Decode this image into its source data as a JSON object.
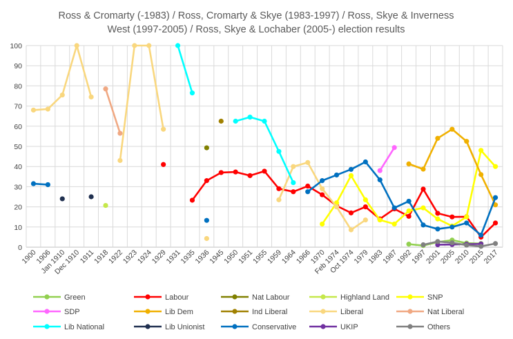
{
  "chart_data": {
    "type": "line",
    "title_lines": [
      "Ross & Cromarty (-1983) / Ross, Cromarty & Skye (1983-1997) / Ross, Skye & Inverness",
      "West (1997-2005) / Ross, Skye & Lochaber (2005-) election results"
    ],
    "categories": [
      "1900",
      "1906",
      "Jan 1910",
      "Dec 1910",
      "1911",
      "1918",
      "1922",
      "1923",
      "1924",
      "1929",
      "1931",
      "1935",
      "1936",
      "1945",
      "1950",
      "1951",
      "1955",
      "1959",
      "1964",
      "1966",
      "1970",
      "Feb 1974",
      "Oct 1974",
      "1979",
      "1983",
      "1987",
      "1992",
      "1997",
      "2001",
      "2005",
      "2010",
      "2015",
      "2017"
    ],
    "ylim": [
      0,
      100
    ],
    "yticks": [
      0,
      10,
      20,
      30,
      40,
      50,
      60,
      70,
      80,
      90,
      100
    ],
    "grid": true,
    "legend_placement": "bottom",
    "series": [
      {
        "name": "Green",
        "color": "#92d050",
        "values": [
          null,
          null,
          null,
          null,
          null,
          null,
          null,
          null,
          null,
          null,
          null,
          null,
          null,
          null,
          null,
          null,
          null,
          null,
          null,
          null,
          null,
          null,
          null,
          null,
          null,
          null,
          1.5,
          0.8,
          2.5,
          3.5,
          2.0,
          1.8,
          null
        ]
      },
      {
        "name": "Labour",
        "color": "#ff0000",
        "values": [
          null,
          null,
          null,
          null,
          null,
          null,
          null,
          null,
          null,
          41,
          null,
          23.3,
          33,
          37,
          37.3,
          35.5,
          37.7,
          29,
          27.5,
          30.3,
          26,
          20.5,
          17,
          20,
          14,
          19,
          15.3,
          28.8,
          16.8,
          15,
          15.1,
          5,
          12
        ]
      },
      {
        "name": "Nat Labour",
        "color": "#808000",
        "values": [
          null,
          null,
          null,
          null,
          null,
          null,
          null,
          null,
          null,
          null,
          null,
          null,
          49.3,
          null,
          null,
          null,
          null,
          null,
          null,
          null,
          null,
          null,
          null,
          null,
          null,
          null,
          null,
          null,
          null,
          null,
          null,
          null,
          null
        ]
      },
      {
        "name": "Highland Land",
        "color": "#c5e84a",
        "values": [
          null,
          null,
          null,
          null,
          null,
          20.7,
          null,
          null,
          null,
          null,
          null,
          null,
          null,
          null,
          null,
          null,
          null,
          null,
          null,
          null,
          null,
          null,
          null,
          null,
          null,
          null,
          null,
          null,
          null,
          null,
          null,
          null,
          null
        ]
      },
      {
        "name": "SNP",
        "color": "#ffff00",
        "values": [
          null,
          null,
          null,
          null,
          null,
          null,
          null,
          null,
          null,
          null,
          null,
          null,
          null,
          null,
          null,
          null,
          null,
          null,
          null,
          null,
          11.5,
          22,
          35.5,
          23.5,
          13.5,
          11.5,
          18,
          19.5,
          14,
          10.5,
          15,
          48,
          40
        ]
      },
      {
        "name": "SDP",
        "color": "#ff66ff",
        "values": [
          null,
          null,
          null,
          null,
          null,
          null,
          null,
          null,
          null,
          null,
          null,
          null,
          null,
          null,
          null,
          null,
          null,
          null,
          null,
          null,
          null,
          null,
          null,
          null,
          38,
          49.4,
          null,
          null,
          null,
          null,
          null,
          null,
          null
        ]
      },
      {
        "name": "Lib Dem",
        "color": "#f0b000",
        "values": [
          null,
          null,
          null,
          null,
          null,
          null,
          null,
          null,
          null,
          null,
          null,
          null,
          null,
          null,
          null,
          null,
          null,
          null,
          null,
          null,
          null,
          null,
          null,
          null,
          null,
          null,
          41.3,
          38.7,
          54,
          58.5,
          52.5,
          36,
          21
        ]
      },
      {
        "name": "Ind Liberal",
        "color": "#a08000",
        "values": [
          null,
          null,
          null,
          null,
          null,
          null,
          null,
          null,
          null,
          null,
          null,
          null,
          null,
          62.5,
          null,
          null,
          null,
          null,
          null,
          null,
          null,
          null,
          null,
          null,
          null,
          null,
          null,
          null,
          null,
          null,
          null,
          null,
          null
        ]
      },
      {
        "name": "Liberal",
        "color": "#f9d77e",
        "values": [
          68,
          68.5,
          75.5,
          100,
          74.5,
          null,
          43,
          100,
          100,
          58.5,
          null,
          null,
          4.3,
          null,
          null,
          null,
          null,
          23.5,
          40,
          42,
          29,
          20,
          8.6,
          13.5,
          null,
          null,
          null,
          null,
          null,
          null,
          null,
          null,
          null
        ]
      },
      {
        "name": "Nat Liberal",
        "color": "#f0a882",
        "values": [
          null,
          null,
          null,
          null,
          null,
          78.5,
          56.5,
          null,
          null,
          null,
          null,
          null,
          null,
          null,
          null,
          null,
          null,
          null,
          null,
          null,
          null,
          null,
          null,
          null,
          null,
          null,
          null,
          null,
          null,
          null,
          null,
          null,
          null
        ]
      },
      {
        "name": "Lib National",
        "color": "#00ffff",
        "values": [
          null,
          null,
          null,
          null,
          null,
          null,
          null,
          null,
          null,
          null,
          100,
          76.5,
          null,
          null,
          62.5,
          64.5,
          62.5,
          47.5,
          32,
          null,
          null,
          null,
          null,
          null,
          null,
          null,
          null,
          null,
          null,
          null,
          null,
          null,
          null
        ]
      },
      {
        "name": "Lib Unionist",
        "color": "#203050",
        "values": [
          null,
          null,
          24,
          null,
          25,
          null,
          null,
          null,
          null,
          null,
          null,
          null,
          null,
          null,
          null,
          null,
          null,
          null,
          null,
          null,
          null,
          null,
          null,
          null,
          null,
          null,
          null,
          null,
          null,
          null,
          null,
          null,
          null
        ]
      },
      {
        "name": "Conservative",
        "color": "#0070c0",
        "values": [
          31.5,
          31,
          null,
          null,
          null,
          null,
          null,
          null,
          null,
          null,
          null,
          null,
          13.3,
          null,
          null,
          null,
          null,
          null,
          null,
          27.5,
          33,
          35.8,
          38.6,
          42.3,
          33.4,
          19.5,
          22.8,
          11,
          9,
          10,
          12,
          6,
          24.6
        ]
      },
      {
        "name": "UKIP",
        "color": "#7030a0",
        "values": [
          null,
          null,
          null,
          null,
          null,
          null,
          null,
          null,
          null,
          null,
          null,
          null,
          null,
          null,
          null,
          null,
          null,
          null,
          null,
          null,
          null,
          null,
          null,
          null,
          null,
          null,
          null,
          null,
          1.2,
          1.3,
          1.5,
          1.6,
          null
        ]
      },
      {
        "name": "Others",
        "color": "#808080",
        "values": [
          null,
          null,
          null,
          null,
          null,
          null,
          null,
          null,
          null,
          null,
          null,
          null,
          null,
          null,
          null,
          null,
          null,
          null,
          null,
          null,
          null,
          null,
          null,
          null,
          null,
          null,
          null,
          1.2,
          2.8,
          2.2,
          1.0,
          0.4,
          1.8
        ]
      }
    ]
  }
}
